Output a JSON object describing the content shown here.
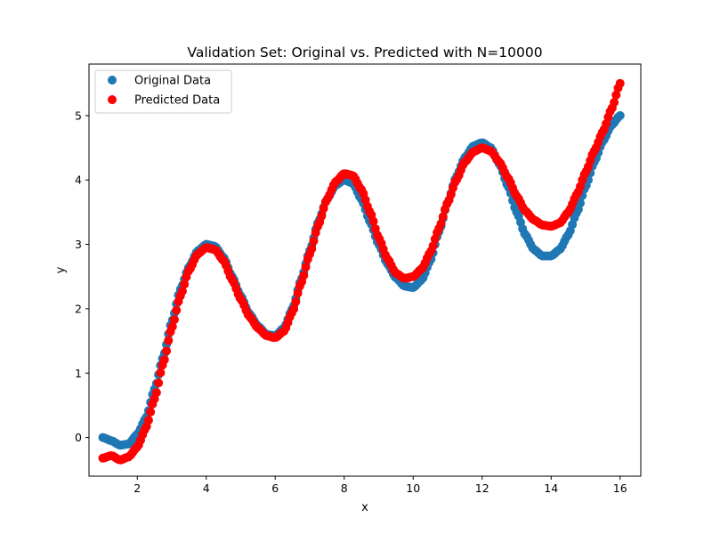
{
  "chart_data": {
    "type": "scatter",
    "title": "Validation Set: Original vs. Predicted with N=10000",
    "xlabel": "x",
    "ylabel": "y",
    "xlim": [
      0.6,
      16.6
    ],
    "ylim": [
      -0.6,
      5.8
    ],
    "xticks": [
      2,
      4,
      6,
      8,
      10,
      12,
      14,
      16
    ],
    "yticks": [
      0,
      1,
      2,
      3,
      4,
      5
    ],
    "grid": false,
    "legend_position": "top-left",
    "series": [
      {
        "name": "Original Data",
        "color": "#1f77b4",
        "x_range": [
          1.0,
          16.0
        ],
        "points": [
          [
            1.0,
            0.0
          ],
          [
            1.25,
            -0.05
          ],
          [
            1.5,
            -0.12
          ],
          [
            1.75,
            -0.1
          ],
          [
            2.0,
            0.05
          ],
          [
            2.25,
            0.3
          ],
          [
            2.5,
            0.75
          ],
          [
            2.75,
            1.25
          ],
          [
            3.0,
            1.8
          ],
          [
            3.25,
            2.3
          ],
          [
            3.5,
            2.65
          ],
          [
            3.75,
            2.9
          ],
          [
            4.0,
            3.0
          ],
          [
            4.25,
            2.97
          ],
          [
            4.5,
            2.8
          ],
          [
            4.75,
            2.5
          ],
          [
            5.0,
            2.2
          ],
          [
            5.25,
            1.92
          ],
          [
            5.5,
            1.73
          ],
          [
            5.75,
            1.6
          ],
          [
            6.0,
            1.58
          ],
          [
            6.25,
            1.7
          ],
          [
            6.5,
            2.0
          ],
          [
            6.75,
            2.45
          ],
          [
            7.0,
            2.9
          ],
          [
            7.25,
            3.35
          ],
          [
            7.5,
            3.7
          ],
          [
            7.75,
            3.92
          ],
          [
            8.0,
            4.0
          ],
          [
            8.25,
            3.95
          ],
          [
            8.5,
            3.7
          ],
          [
            8.75,
            3.35
          ],
          [
            9.0,
            3.0
          ],
          [
            9.25,
            2.7
          ],
          [
            9.5,
            2.48
          ],
          [
            9.75,
            2.35
          ],
          [
            10.0,
            2.33
          ],
          [
            10.25,
            2.45
          ],
          [
            10.5,
            2.75
          ],
          [
            10.75,
            3.2
          ],
          [
            11.0,
            3.65
          ],
          [
            11.25,
            4.05
          ],
          [
            11.5,
            4.35
          ],
          [
            11.75,
            4.53
          ],
          [
            12.0,
            4.58
          ],
          [
            12.25,
            4.5
          ],
          [
            12.5,
            4.25
          ],
          [
            12.75,
            3.9
          ],
          [
            13.0,
            3.5
          ],
          [
            13.25,
            3.15
          ],
          [
            13.5,
            2.92
          ],
          [
            13.75,
            2.82
          ],
          [
            14.0,
            2.82
          ],
          [
            14.25,
            2.92
          ],
          [
            14.5,
            3.15
          ],
          [
            14.75,
            3.5
          ],
          [
            15.0,
            3.9
          ],
          [
            15.25,
            4.28
          ],
          [
            15.5,
            4.6
          ],
          [
            15.75,
            4.85
          ],
          [
            16.0,
            5.0
          ]
        ]
      },
      {
        "name": "Predicted Data",
        "color": "#ff0000",
        "x_range": [
          1.0,
          16.0
        ],
        "points": [
          [
            1.0,
            -0.32
          ],
          [
            1.25,
            -0.28
          ],
          [
            1.5,
            -0.35
          ],
          [
            1.75,
            -0.3
          ],
          [
            2.0,
            -0.15
          ],
          [
            2.25,
            0.15
          ],
          [
            2.5,
            0.6
          ],
          [
            2.75,
            1.15
          ],
          [
            3.0,
            1.7
          ],
          [
            3.25,
            2.2
          ],
          [
            3.5,
            2.6
          ],
          [
            3.75,
            2.85
          ],
          [
            4.0,
            2.95
          ],
          [
            4.25,
            2.92
          ],
          [
            4.5,
            2.75
          ],
          [
            4.75,
            2.45
          ],
          [
            5.0,
            2.15
          ],
          [
            5.25,
            1.88
          ],
          [
            5.5,
            1.7
          ],
          [
            5.75,
            1.58
          ],
          [
            6.0,
            1.55
          ],
          [
            6.25,
            1.65
          ],
          [
            6.5,
            1.95
          ],
          [
            6.75,
            2.4
          ],
          [
            7.0,
            2.85
          ],
          [
            7.25,
            3.3
          ],
          [
            7.5,
            3.7
          ],
          [
            7.75,
            3.97
          ],
          [
            8.0,
            4.1
          ],
          [
            8.25,
            4.07
          ],
          [
            8.5,
            3.85
          ],
          [
            8.75,
            3.5
          ],
          [
            9.0,
            3.1
          ],
          [
            9.25,
            2.78
          ],
          [
            9.5,
            2.55
          ],
          [
            9.75,
            2.47
          ],
          [
            10.0,
            2.5
          ],
          [
            10.25,
            2.62
          ],
          [
            10.5,
            2.88
          ],
          [
            10.75,
            3.25
          ],
          [
            11.0,
            3.65
          ],
          [
            11.25,
            4.0
          ],
          [
            11.5,
            4.28
          ],
          [
            11.75,
            4.44
          ],
          [
            12.0,
            4.5
          ],
          [
            12.25,
            4.45
          ],
          [
            12.5,
            4.28
          ],
          [
            12.75,
            4.03
          ],
          [
            13.0,
            3.75
          ],
          [
            13.25,
            3.52
          ],
          [
            13.5,
            3.38
          ],
          [
            13.75,
            3.3
          ],
          [
            14.0,
            3.28
          ],
          [
            14.25,
            3.33
          ],
          [
            14.5,
            3.5
          ],
          [
            14.75,
            3.78
          ],
          [
            15.0,
            4.12
          ],
          [
            15.25,
            4.45
          ],
          [
            15.5,
            4.75
          ],
          [
            15.75,
            5.1
          ],
          [
            16.0,
            5.5
          ]
        ]
      }
    ]
  }
}
